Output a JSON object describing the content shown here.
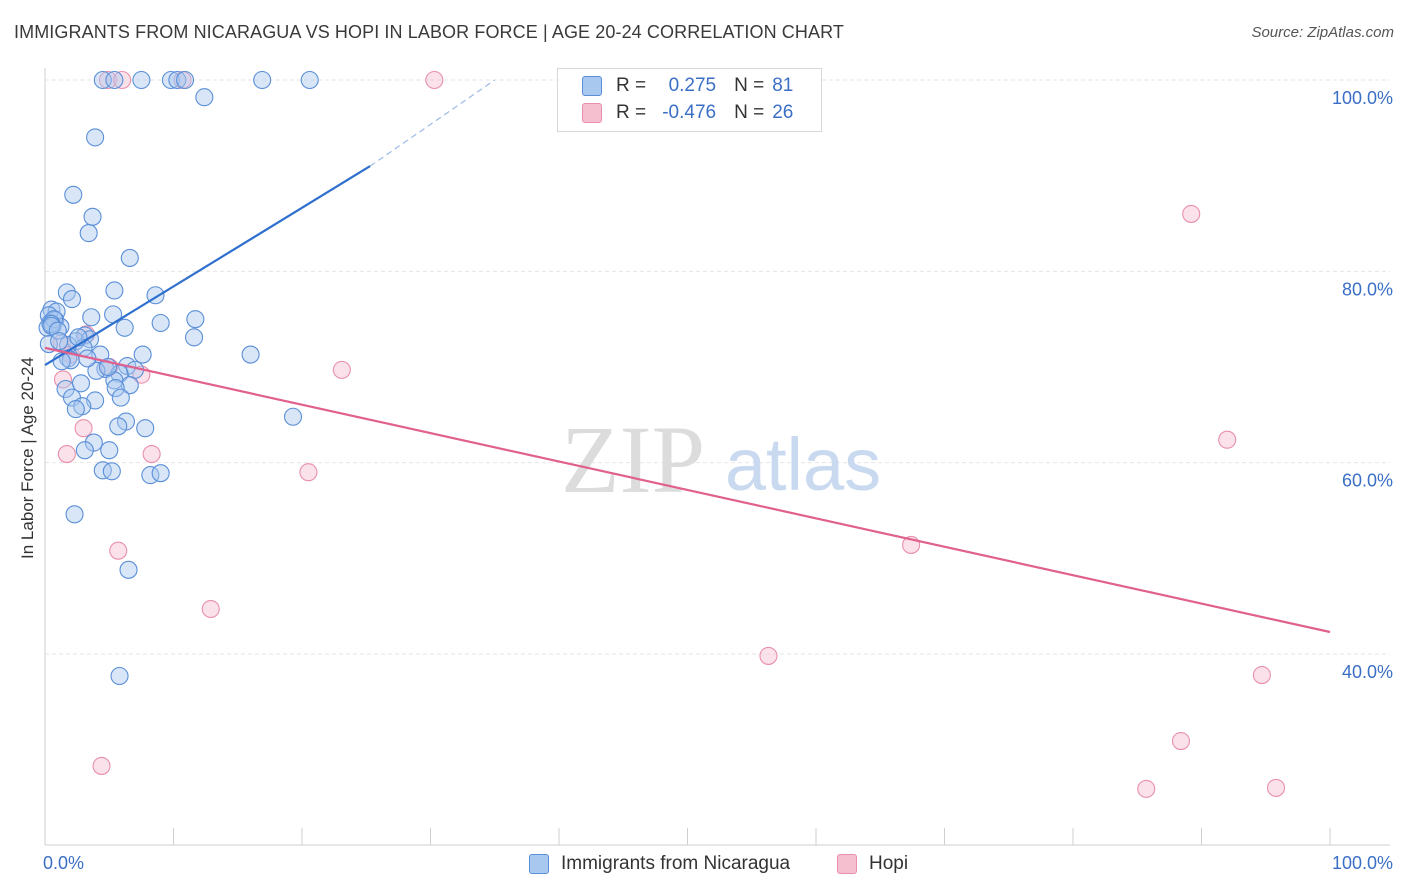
{
  "header": {
    "title": "IMMIGRANTS FROM NICARAGUA VS HOPI IN LABOR FORCE | AGE 20-24 CORRELATION CHART",
    "source": "Source: ZipAtlas.com"
  },
  "watermark": {
    "zip": "ZIP",
    "atlas": "atlas"
  },
  "legend": {
    "rows": [
      {
        "r_label": "R =",
        "r_value": "0.275",
        "n_label": "N =",
        "n_value": "81"
      },
      {
        "r_label": "R =",
        "r_value": "-0.476",
        "n_label": "N =",
        "n_value": "26"
      }
    ]
  },
  "chart_data": {
    "type": "scatter",
    "title": "IMMIGRANTS FROM NICARAGUA VS HOPI IN LABOR FORCE | AGE 20-24 CORRELATION CHART",
    "xlabel": "",
    "ylabel": "In Labor Force | Age 20-24",
    "xlim": [
      0,
      100
    ],
    "ylim": [
      18,
      102
    ],
    "x_tick_labels": [
      "0.0%",
      "100.0%"
    ],
    "y_ticks": [
      40,
      60,
      80,
      100
    ],
    "y_tick_labels": [
      "40.0%",
      "60.0%",
      "80.0%",
      "100.0%"
    ],
    "grid": true,
    "colors": {
      "blue_fill": "#a9c8f0",
      "blue_stroke": "#5a8fd8",
      "blue_line": "#2f6fce",
      "pink_fill": "#f6bfd0",
      "pink_stroke": "#e98fab",
      "pink_line": "#e0608e",
      "axis_text": "#3b6fc6",
      "grid": "#e6e6e6"
    },
    "series": [
      {
        "name": "Immigrants from Nicaragua",
        "r": 0.275,
        "n": 81,
        "trend": {
          "x_start": 0,
          "y_start": 70.2,
          "x_end": 25.3,
          "y_end": 91.0,
          "dash_x_end": 35.0,
          "dash_y_end": 100.0
        },
        "points": [
          [
            4.5,
            100
          ],
          [
            5.4,
            100
          ],
          [
            7.5,
            100
          ],
          [
            9.8,
            100
          ],
          [
            10.3,
            100
          ],
          [
            10.9,
            100
          ],
          [
            16.9,
            100
          ],
          [
            20.6,
            100
          ],
          [
            12.4,
            98.2
          ],
          [
            3.9,
            94.0
          ],
          [
            2.2,
            88.0
          ],
          [
            3.7,
            85.7
          ],
          [
            3.4,
            84.0
          ],
          [
            6.6,
            81.4
          ],
          [
            1.7,
            77.8
          ],
          [
            2.1,
            77.1
          ],
          [
            0.5,
            76.0
          ],
          [
            0.9,
            75.8
          ],
          [
            0.3,
            75.4
          ],
          [
            5.3,
            75.5
          ],
          [
            3.6,
            75.2
          ],
          [
            11.7,
            75.0
          ],
          [
            8.6,
            77.5
          ],
          [
            5.4,
            78.0
          ],
          [
            0.4,
            74.6
          ],
          [
            0.8,
            74.9
          ],
          [
            0.2,
            74.1
          ],
          [
            0.6,
            74.3
          ],
          [
            1.2,
            74.2
          ],
          [
            0.7,
            75.0
          ],
          [
            0.5,
            74.5
          ],
          [
            9.0,
            74.6
          ],
          [
            6.2,
            74.1
          ],
          [
            3.1,
            73.3
          ],
          [
            2.4,
            72.7
          ],
          [
            3.5,
            72.9
          ],
          [
            1.8,
            72.3
          ],
          [
            11.6,
            73.1
          ],
          [
            3.0,
            72.0
          ],
          [
            4.3,
            71.3
          ],
          [
            1.8,
            70.9
          ],
          [
            2.0,
            70.7
          ],
          [
            1.3,
            70.6
          ],
          [
            16.0,
            71.3
          ],
          [
            6.4,
            70.1
          ],
          [
            4.7,
            69.8
          ],
          [
            4.0,
            69.6
          ],
          [
            7.0,
            69.7
          ],
          [
            5.8,
            69.3
          ],
          [
            2.8,
            68.3
          ],
          [
            6.6,
            68.1
          ],
          [
            5.4,
            68.6
          ],
          [
            1.6,
            67.7
          ],
          [
            2.1,
            66.8
          ],
          [
            5.5,
            67.8
          ],
          [
            3.9,
            66.5
          ],
          [
            5.9,
            66.8
          ],
          [
            2.9,
            65.9
          ],
          [
            2.4,
            65.6
          ],
          [
            19.3,
            64.8
          ],
          [
            6.3,
            64.3
          ],
          [
            5.7,
            63.8
          ],
          [
            7.8,
            63.6
          ],
          [
            3.8,
            62.1
          ],
          [
            3.1,
            61.3
          ],
          [
            5.0,
            61.3
          ],
          [
            8.2,
            58.7
          ],
          [
            9.0,
            58.9
          ],
          [
            4.5,
            59.2
          ],
          [
            5.2,
            59.1
          ],
          [
            2.3,
            54.6
          ],
          [
            6.5,
            48.8
          ],
          [
            5.8,
            37.7
          ],
          [
            0.5,
            74.3
          ],
          [
            1.0,
            73.8
          ],
          [
            0.3,
            72.4
          ],
          [
            2.6,
            73.1
          ],
          [
            4.9,
            70.0
          ],
          [
            3.3,
            70.9
          ],
          [
            1.1,
            72.7
          ],
          [
            7.6,
            71.3
          ]
        ]
      },
      {
        "name": "Hopi",
        "r": -0.476,
        "n": 26,
        "trend": {
          "x_start": 0,
          "y_start": 72.0,
          "x_end": 100,
          "y_end": 42.3
        },
        "points": [
          [
            4.9,
            100
          ],
          [
            6.0,
            100
          ],
          [
            10.7,
            100
          ],
          [
            30.3,
            100
          ],
          [
            89.2,
            86.0
          ],
          [
            1.3,
            72.5
          ],
          [
            3.2,
            73.4
          ],
          [
            7.5,
            69.2
          ],
          [
            23.1,
            69.7
          ],
          [
            1.4,
            68.7
          ],
          [
            3.0,
            63.6
          ],
          [
            1.7,
            60.9
          ],
          [
            8.3,
            60.9
          ],
          [
            20.5,
            59.0
          ],
          [
            5.7,
            50.8
          ],
          [
            12.9,
            44.7
          ],
          [
            67.4,
            51.4
          ],
          [
            92.0,
            62.4
          ],
          [
            56.3,
            39.8
          ],
          [
            94.7,
            37.8
          ],
          [
            88.4,
            30.9
          ],
          [
            4.4,
            28.3
          ],
          [
            85.7,
            25.9
          ],
          [
            95.8,
            26.0
          ],
          [
            5.0,
            70.0
          ],
          [
            2.0,
            71.3
          ]
        ]
      }
    ]
  },
  "bottom_legend": {
    "items": [
      {
        "label": "Immigrants from Nicaragua"
      },
      {
        "label": "Hopi"
      }
    ]
  }
}
